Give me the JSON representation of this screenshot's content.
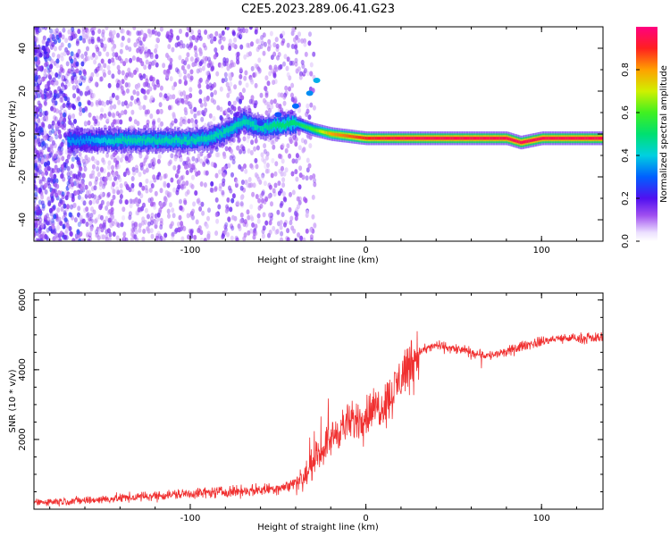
{
  "title": "C2E5.2023.289.06.41.G23",
  "colors": {
    "snr_line": "#f03030",
    "axis": "#000000"
  },
  "chart_data": [
    {
      "type": "heatmap",
      "name": "spectrogram",
      "xlabel": "Height of straight line (km)",
      "ylabel": "Frequency (Hz)",
      "xlim": [
        -189,
        135
      ],
      "ylim": [
        -50,
        50
      ],
      "xticks": [
        -100,
        0,
        100
      ],
      "yticks": [
        -40,
        -20,
        0,
        20,
        40
      ],
      "colorbar": {
        "label": "Normalized spectral amplitude",
        "range": [
          0,
          1
        ],
        "ticks": [
          "0.0",
          "0.2",
          "0.4",
          "0.6",
          "0.8"
        ],
        "tick_values": [
          0.0,
          0.2,
          0.4,
          0.6,
          0.8
        ]
      },
      "ridge": [
        {
          "x": -160,
          "y": -3,
          "amp": 0.35
        },
        {
          "x": -140,
          "y": -3,
          "amp": 0.45
        },
        {
          "x": -120,
          "y": -3,
          "amp": 0.45
        },
        {
          "x": -100,
          "y": -3,
          "amp": 0.45
        },
        {
          "x": -90,
          "y": -2,
          "amp": 0.45
        },
        {
          "x": -80,
          "y": 1,
          "amp": 0.45
        },
        {
          "x": -70,
          "y": 6,
          "amp": 0.45
        },
        {
          "x": -60,
          "y": 3,
          "amp": 0.45
        },
        {
          "x": -50,
          "y": 4,
          "amp": 0.5
        },
        {
          "x": -40,
          "y": 5,
          "amp": 0.5
        },
        {
          "x": -30,
          "y": 2,
          "amp": 0.6
        },
        {
          "x": -20,
          "y": 0,
          "amp": 0.8
        },
        {
          "x": -10,
          "y": -1,
          "amp": 0.85
        },
        {
          "x": 0,
          "y": -2,
          "amp": 0.9
        },
        {
          "x": 20,
          "y": -2,
          "amp": 0.95
        },
        {
          "x": 40,
          "y": -2,
          "amp": 0.95
        },
        {
          "x": 60,
          "y": -2,
          "amp": 0.95
        },
        {
          "x": 80,
          "y": -2,
          "amp": 0.95
        },
        {
          "x": 88,
          "y": -4,
          "amp": 0.95
        },
        {
          "x": 100,
          "y": -2,
          "amp": 0.95
        },
        {
          "x": 120,
          "y": -2,
          "amp": 0.95
        },
        {
          "x": 135,
          "y": -2,
          "amp": 0.95
        }
      ],
      "branch": [
        {
          "x": -60,
          "y": 5
        },
        {
          "x": -50,
          "y": 9
        },
        {
          "x": -40,
          "y": 13
        },
        {
          "x": -32,
          "y": 19
        },
        {
          "x": -28,
          "y": 25
        }
      ]
    },
    {
      "type": "line",
      "name": "snr",
      "xlabel": "Height of straight line (km)",
      "ylabel": "SNR (10 * v/v)",
      "xlim": [
        -189,
        135
      ],
      "ylim": [
        0,
        6200
      ],
      "xticks": [
        -100,
        0,
        100
      ],
      "yticks": [
        2000,
        4000,
        6000
      ],
      "trend": {
        "x": [
          -189,
          -160,
          -130,
          -100,
          -80,
          -60,
          -45,
          -35,
          -28,
          -22,
          -15,
          -8,
          0,
          5,
          10,
          15,
          20,
          25,
          30,
          40,
          50,
          60,
          70,
          80,
          90,
          100,
          110,
          120,
          130,
          135
        ],
        "y": [
          200,
          250,
          350,
          450,
          500,
          550,
          650,
          900,
          1500,
          1900,
          2300,
          2500,
          2700,
          2900,
          3000,
          3300,
          3800,
          4200,
          4500,
          4700,
          4600,
          4500,
          4400,
          4500,
          4700,
          4800,
          4900,
          4900,
          4900,
          4950
        ]
      }
    }
  ]
}
